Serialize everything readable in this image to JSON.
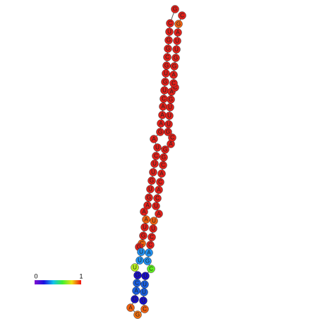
{
  "nodes": [
    {
      "label": "G",
      "color": "#e0201a"
    },
    {
      "label": "C",
      "color": "#e0201a"
    },
    {
      "label": "U",
      "color": "#e0201a"
    },
    {
      "label": "G",
      "color": "#e0201a"
    },
    {
      "label": "G",
      "color": "#e0201a"
    },
    {
      "label": "C",
      "color": "#e0201a"
    },
    {
      "label": "G",
      "color": "#e0201a"
    },
    {
      "label": "U",
      "color": "#e0201a"
    },
    {
      "label": "G",
      "color": "#e0201a"
    },
    {
      "label": "U",
      "color": "#e0201a"
    },
    {
      "label": "C",
      "color": "#e0201a"
    },
    {
      "label": "A",
      "color": "#e0201a"
    },
    {
      "label": "A",
      "color": "#e0201a"
    },
    {
      "label": "A",
      "color": "#e0201a"
    },
    {
      "label": "G",
      "color": "#e0201a"
    },
    {
      "label": "A",
      "color": "#e0201a"
    },
    {
      "label": "U",
      "color": "#e0201a"
    },
    {
      "label": "C",
      "color": "#e0201a"
    },
    {
      "label": "U",
      "color": "#e0201a"
    },
    {
      "label": "U",
      "color": "#e0201a"
    },
    {
      "label": "G",
      "color": "#e0201a"
    },
    {
      "label": "U",
      "color": "#e0201a"
    },
    {
      "label": "G",
      "color": "#e0201a"
    },
    {
      "label": "A",
      "color": "#e0201a"
    },
    {
      "label": "A",
      "color": "#e0201a"
    },
    {
      "label": "A",
      "color": "#f06010"
    },
    {
      "label": "U",
      "color": "#e0201a"
    },
    {
      "label": "G",
      "color": "#e0201a"
    },
    {
      "label": "C",
      "color": "#f06010"
    },
    {
      "label": "G",
      "color": "#e0201a"
    },
    {
      "label": "U",
      "color": "#2090f0"
    },
    {
      "label": "U",
      "color": "#2090f0"
    },
    {
      "label": "U",
      "color": "#b8f020"
    },
    {
      "label": "G",
      "color": "#1a10c8"
    },
    {
      "label": "C",
      "color": "#1a60e0"
    },
    {
      "label": "A",
      "color": "#1a60e0"
    },
    {
      "label": "G",
      "color": "#1a10c8"
    },
    {
      "label": "A",
      "color": "#f06010"
    },
    {
      "label": "G",
      "color": "#f07010"
    },
    {
      "label": "C",
      "color": "#f06010"
    },
    {
      "label": "U",
      "color": "#1a10c8"
    },
    {
      "label": "U",
      "color": "#1a60e0"
    },
    {
      "label": "U",
      "color": "#1a60e0"
    },
    {
      "label": "U",
      "color": "#1a10c8"
    },
    {
      "label": "C",
      "color": "#60f020"
    },
    {
      "label": "G",
      "color": "#2090f0"
    },
    {
      "label": "A",
      "color": "#2090f0"
    },
    {
      "label": "C",
      "color": "#e0201a"
    },
    {
      "label": "C",
      "color": "#e0201a"
    },
    {
      "label": "U",
      "color": "#e0201a"
    },
    {
      "label": "U",
      "color": "#f06010"
    },
    {
      "label": "A",
      "color": "#e0201a"
    },
    {
      "label": "U",
      "color": "#e0201a"
    },
    {
      "label": "C",
      "color": "#e0201a"
    },
    {
      "label": "A",
      "color": "#e0201a"
    },
    {
      "label": "C",
      "color": "#e0201a"
    },
    {
      "label": "A",
      "color": "#e0201a"
    },
    {
      "label": "C",
      "color": "#e0201a"
    },
    {
      "label": "G",
      "color": "#e0201a"
    },
    {
      "label": "G",
      "color": "#e0201a"
    },
    {
      "label": "A",
      "color": "#e0201a"
    },
    {
      "label": "C",
      "color": "#e0201a"
    },
    {
      "label": "G",
      "color": "#e0201a"
    },
    {
      "label": "U",
      "color": "#e0201a"
    },
    {
      "label": "U",
      "color": "#e0201a"
    },
    {
      "label": "U",
      "color": "#e0201a"
    },
    {
      "label": "G",
      "color": "#e0201a"
    },
    {
      "label": "A",
      "color": "#e0201a"
    },
    {
      "label": "C",
      "color": "#e0201a"
    },
    {
      "label": "C",
      "color": "#e0201a"
    },
    {
      "label": "A",
      "color": "#e0201a"
    },
    {
      "label": "G",
      "color": "#e0201a"
    },
    {
      "label": "G",
      "color": "#e0201a"
    },
    {
      "label": "U",
      "color": "#e0201a"
    },
    {
      "label": "U",
      "color": "#e0201a"
    },
    {
      "label": "A",
      "color": "#e0201a"
    },
    {
      "label": "G",
      "color": "#f06010"
    },
    {
      "label": "C",
      "color": "#e0201a"
    }
  ],
  "colorbar": {
    "min": 0,
    "max": 1
  }
}
